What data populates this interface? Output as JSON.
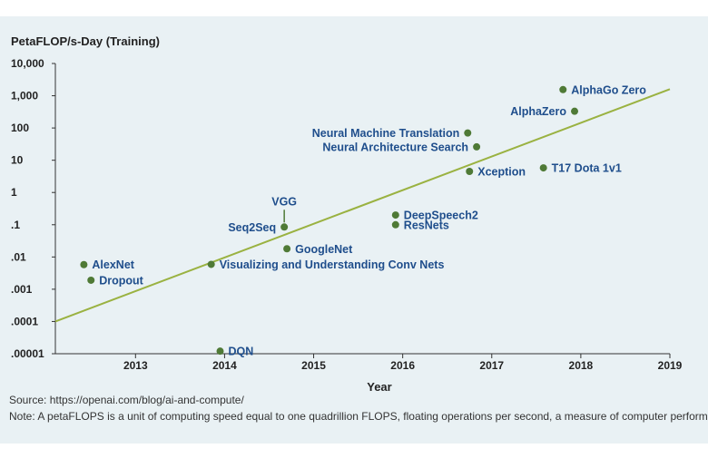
{
  "chart_data": {
    "type": "scatter",
    "ylabel": "PetaFLOP/s-Day (Training)",
    "xlabel": "Year",
    "y_scale": "log",
    "ylim": [
      1e-05,
      10000
    ],
    "xlim": [
      2012.1,
      2019
    ],
    "y_ticks": [
      {
        "value": 10000,
        "label": "10,000"
      },
      {
        "value": 1000,
        "label": "1,000"
      },
      {
        "value": 100,
        "label": "100"
      },
      {
        "value": 10,
        "label": "10"
      },
      {
        "value": 1,
        "label": "1"
      },
      {
        "value": 0.1,
        "label": ".1"
      },
      {
        "value": 0.01,
        "label": ".01"
      },
      {
        "value": 0.001,
        "label": ".001"
      },
      {
        "value": 0.0001,
        "label": ".0001"
      },
      {
        "value": 1e-05,
        "label": ".00001"
      }
    ],
    "x_ticks": [
      {
        "value": 2013,
        "label": "2013"
      },
      {
        "value": 2014,
        "label": "2014"
      },
      {
        "value": 2015,
        "label": "2015"
      },
      {
        "value": 2016,
        "label": "2016"
      },
      {
        "value": 2017,
        "label": "2017"
      },
      {
        "value": 2018,
        "label": "2018"
      },
      {
        "value": 2019,
        "label": "2019"
      }
    ],
    "points": [
      {
        "label": "AlexNet",
        "x": 2012.42,
        "y": 0.0058,
        "label_pos": "right"
      },
      {
        "label": "Dropout",
        "x": 2012.5,
        "y": 0.0019,
        "label_pos": "right"
      },
      {
        "label": "DQN",
        "x": 2013.95,
        "y": 1.2e-05,
        "label_pos": "right"
      },
      {
        "label": "Visualizing and Understanding Conv Nets",
        "x": 2013.85,
        "y": 0.0059,
        "label_pos": "right"
      },
      {
        "label": "GoogleNet",
        "x": 2014.7,
        "y": 0.018,
        "label_pos": "right"
      },
      {
        "label": "Seq2Seq",
        "x": 2014.67,
        "y": 0.085,
        "label_pos": "left"
      },
      {
        "label": "VGG",
        "x": 2014.67,
        "y": 0.085,
        "label_pos": "above-leader"
      },
      {
        "label": "DeepSpeech2",
        "x": 2015.92,
        "y": 0.2,
        "label_pos": "right"
      },
      {
        "label": "ResNets",
        "x": 2015.92,
        "y": 0.1,
        "label_pos": "right"
      },
      {
        "label": "Neural Machine Translation",
        "x": 2016.73,
        "y": 70,
        "label_pos": "left"
      },
      {
        "label": "Neural Architecture Search",
        "x": 2016.83,
        "y": 26,
        "label_pos": "left"
      },
      {
        "label": "Xception",
        "x": 2016.75,
        "y": 4.5,
        "label_pos": "right"
      },
      {
        "label": "T17 Dota 1v1",
        "x": 2017.58,
        "y": 5.8,
        "label_pos": "right"
      },
      {
        "label": "AlphaGo Zero",
        "x": 2017.8,
        "y": 1550,
        "label_pos": "right"
      },
      {
        "label": "AlphaZero",
        "x": 2017.93,
        "y": 330,
        "label_pos": "left"
      }
    ],
    "trend_line": {
      "x": [
        2012.1,
        2019
      ],
      "y": [
        0.0001,
        1600
      ]
    },
    "grid": false,
    "colors": {
      "points": "#4f7a36",
      "trend": "#9ab241",
      "labels": "#1f4e8c",
      "background": "#e9f1f4"
    }
  },
  "footer": {
    "source": "Source: https://openai.com/blog/ai-and-compute/",
    "note": "Note: A petaFLOPS is a unit of computing speed equal to one quadrillion FLOPS, floating operations per second, a measure of computer performance."
  }
}
